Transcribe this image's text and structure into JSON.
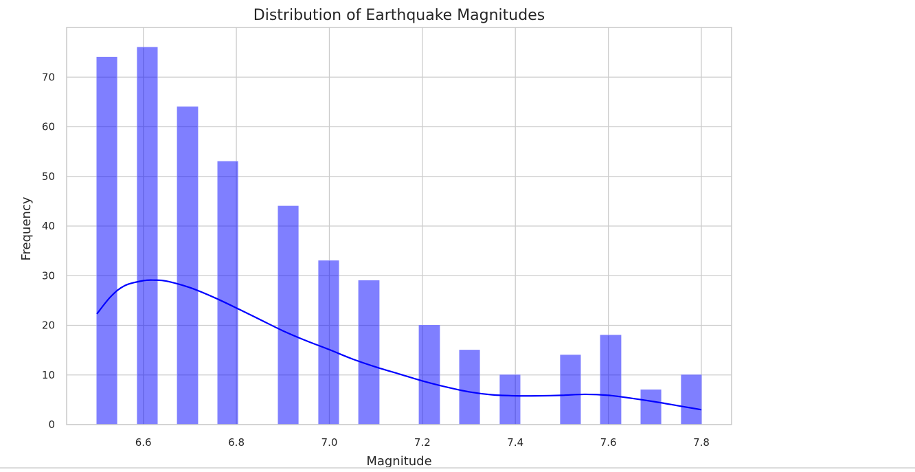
{
  "chart_data": {
    "type": "bar",
    "title": "Distribution of Earthquake Magnitudes",
    "xlabel": "Magnitude",
    "ylabel": "Frequency",
    "xlim": [
      6.435,
      7.865
    ],
    "ylim": [
      0,
      80
    ],
    "grid": true,
    "x_ticks": [
      "6.6",
      "6.8",
      "7.0",
      "7.2",
      "7.4",
      "7.6",
      "7.8"
    ],
    "x_tick_values": [
      6.6,
      6.8,
      7.0,
      7.2,
      7.4,
      7.6,
      7.8
    ],
    "y_ticks": [
      "0",
      "10",
      "20",
      "30",
      "40",
      "50",
      "60",
      "70"
    ],
    "y_tick_values": [
      0,
      10,
      20,
      30,
      40,
      50,
      60,
      70
    ],
    "bar_color": "#0000ff",
    "bar_opacity": 0.5,
    "bins": [
      {
        "start": 6.5,
        "end": 6.543,
        "value": 74
      },
      {
        "start": 6.587,
        "end": 6.63,
        "value": 76
      },
      {
        "start": 6.673,
        "end": 6.717,
        "value": 64
      },
      {
        "start": 6.76,
        "end": 6.803,
        "value": 53
      },
      {
        "start": 6.89,
        "end": 6.933,
        "value": 44
      },
      {
        "start": 6.977,
        "end": 7.02,
        "value": 33
      },
      {
        "start": 7.063,
        "end": 7.107,
        "value": 29
      },
      {
        "start": 7.193,
        "end": 7.237,
        "value": 20
      },
      {
        "start": 7.28,
        "end": 7.323,
        "value": 15
      },
      {
        "start": 7.367,
        "end": 7.41,
        "value": 10
      },
      {
        "start": 7.497,
        "end": 7.54,
        "value": 14
      },
      {
        "start": 7.583,
        "end": 7.627,
        "value": 18
      },
      {
        "start": 7.67,
        "end": 7.713,
        "value": 7
      },
      {
        "start": 7.757,
        "end": 7.8,
        "value": 10
      }
    ],
    "kde": {
      "color": "#0000ff",
      "x": [
        6.5,
        6.53,
        6.56,
        6.6,
        6.625,
        6.65,
        6.7,
        6.75,
        6.8,
        6.85,
        6.9,
        6.95,
        7.0,
        7.05,
        7.1,
        7.15,
        7.2,
        7.25,
        7.3,
        7.35,
        7.4,
        7.45,
        7.5,
        7.55,
        7.6,
        7.65,
        7.7,
        7.75,
        7.8
      ],
      "y": [
        22.3,
        25.8,
        28.0,
        29.0,
        29.1,
        28.9,
        27.6,
        25.7,
        23.5,
        21.2,
        18.9,
        16.9,
        15.1,
        13.2,
        11.6,
        10.2,
        8.8,
        7.6,
        6.6,
        6.0,
        5.8,
        5.8,
        5.9,
        6.1,
        5.9,
        5.3,
        4.6,
        3.8,
        3.0
      ]
    }
  }
}
